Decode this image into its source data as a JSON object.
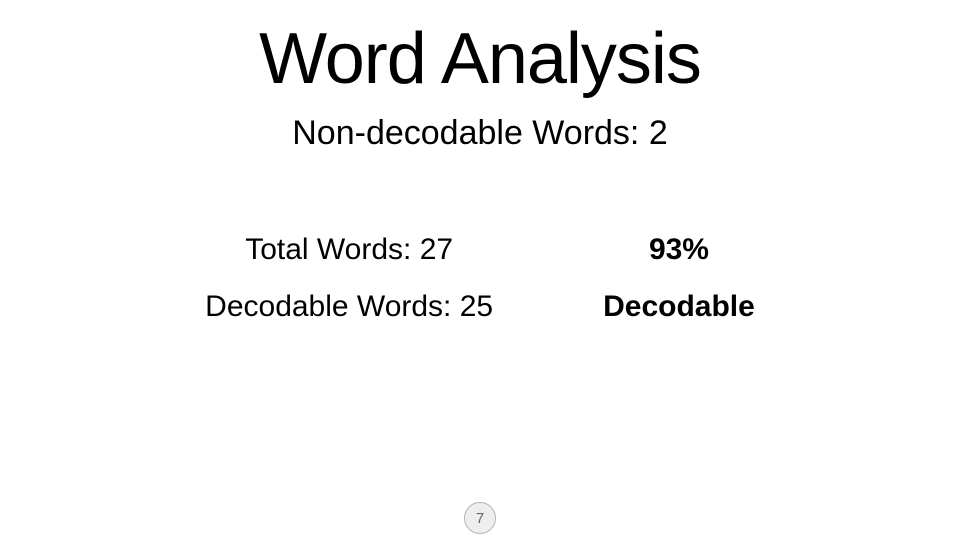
{
  "title": "Word Analysis",
  "subtitle": "Non-decodable Words: 2",
  "stats": {
    "total_words": "Total Words: 27",
    "decodable_words": "Decodable Words: 25",
    "percent": "93%",
    "percent_label": "Decodable"
  },
  "page_number": "7",
  "colors": {
    "background": "#ffffff",
    "text": "#000000",
    "badge_bg": "#eeeeee",
    "badge_border": "#b5b5b5",
    "badge_text": "#666666"
  },
  "typography": {
    "title_fontsize": 72,
    "subtitle_fontsize": 34,
    "stat_fontsize": 30,
    "badge_fontsize": 15
  }
}
